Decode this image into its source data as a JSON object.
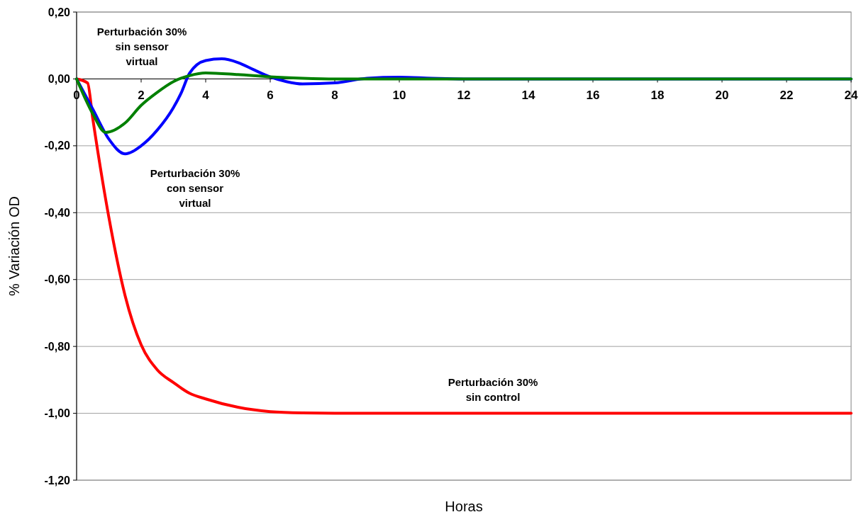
{
  "chart_data": {
    "type": "line",
    "xlabel": "Horas",
    "ylabel": "% Variación OD",
    "xlim": [
      0,
      24
    ],
    "xticks": [
      0,
      2,
      4,
      6,
      8,
      10,
      12,
      14,
      16,
      18,
      20,
      22,
      24
    ],
    "ylim": [
      -1.2,
      0.2
    ],
    "yticks": [
      {
        "value": 0.2,
        "label": "0,20"
      },
      {
        "value": 0,
        "label": "0,00"
      },
      {
        "value": -0.2,
        "label": "-0,20"
      },
      {
        "value": -0.4,
        "label": "-0,40"
      },
      {
        "value": -0.6,
        "label": "-0,60"
      },
      {
        "value": -0.8,
        "label": "-0,80"
      },
      {
        "value": -1,
        "label": "-1,00"
      },
      {
        "value": -1.2,
        "label": "-1,20"
      }
    ],
    "grid": "y",
    "marker": "none",
    "line_style": "solid",
    "series": [
      {
        "color": "#ff0000",
        "x": [
          0,
          0.34,
          0.5,
          1,
          1.5,
          2,
          2.5,
          3,
          3.5,
          4,
          5,
          6,
          7,
          8,
          24
        ],
        "values": [
          0,
          -0.012,
          -0.118,
          -0.414,
          -0.647,
          -0.795,
          -0.87,
          -0.908,
          -0.94,
          -0.957,
          -0.982,
          -0.995,
          -0.999,
          -1,
          -1
        ]
      },
      {
        "color": "#0000ff",
        "x": [
          0,
          0.5,
          1,
          1.5,
          2,
          2.5,
          3,
          3.25,
          3.5,
          4,
          4.5,
          5,
          5.5,
          6,
          6.5,
          7,
          8,
          9,
          10,
          11,
          12,
          24
        ],
        "values": [
          0,
          -0.09,
          -0.18,
          -0.224,
          -0.2,
          -0.153,
          -0.086,
          -0.04,
          0.017,
          0.055,
          0.06,
          0.049,
          0.027,
          0.006,
          -0.008,
          -0.015,
          -0.012,
          0.002,
          0.005,
          0.002,
          0,
          0
        ]
      },
      {
        "color": "#008000",
        "x": [
          0,
          0.5,
          0.9,
          1.5,
          2,
          2.5,
          3,
          3.5,
          4,
          5,
          6,
          7,
          8,
          24
        ],
        "values": [
          0,
          -0.104,
          -0.16,
          -0.132,
          -0.079,
          -0.04,
          -0.008,
          0.01,
          0.018,
          0.013,
          0.006,
          0.002,
          0,
          0
        ]
      }
    ],
    "annotations": [
      "Perturbación 30%\nsin sensor\nvirtual",
      "Perturbación 30%\ncon sensor\nvirtual",
      "Perturbación 30%\nsin control"
    ]
  }
}
